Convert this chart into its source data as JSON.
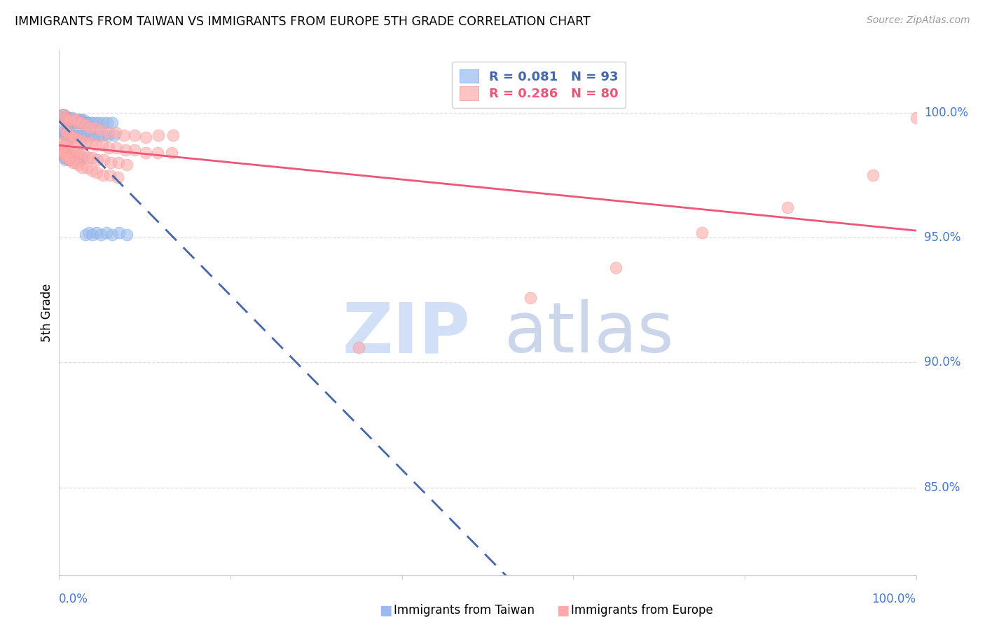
{
  "title": "IMMIGRANTS FROM TAIWAN VS IMMIGRANTS FROM EUROPE 5TH GRADE CORRELATION CHART",
  "source": "Source: ZipAtlas.com",
  "ylabel": "5th Grade",
  "ytick_values": [
    1.0,
    0.95,
    0.9,
    0.85
  ],
  "ytick_labels": [
    "100.0%",
    "95.0%",
    "90.0%",
    "85.0%"
  ],
  "xrange": [
    0.0,
    1.0
  ],
  "yrange": [
    0.815,
    1.025
  ],
  "color_taiwan_fill": "#99BBEE",
  "color_taiwan_edge": "#88AADD",
  "color_europe_fill": "#FFAAAA",
  "color_europe_edge": "#EE9999",
  "color_trendline_taiwan": "#4466AA",
  "color_trendline_europe": "#EE5577",
  "color_axis_labels": "#4477CC",
  "color_grid": "#DDDDDD",
  "taiwan_x": [
    0.004,
    0.005,
    0.005,
    0.006,
    0.006,
    0.007,
    0.007,
    0.008,
    0.008,
    0.009,
    0.009,
    0.01,
    0.01,
    0.011,
    0.011,
    0.012,
    0.012,
    0.013,
    0.014,
    0.015,
    0.015,
    0.016,
    0.017,
    0.018,
    0.019,
    0.02,
    0.021,
    0.022,
    0.023,
    0.024,
    0.025,
    0.026,
    0.027,
    0.028,
    0.029,
    0.031,
    0.033,
    0.035,
    0.038,
    0.042,
    0.046,
    0.051,
    0.056,
    0.062,
    0.004,
    0.005,
    0.006,
    0.007,
    0.008,
    0.009,
    0.01,
    0.011,
    0.012,
    0.013,
    0.015,
    0.017,
    0.019,
    0.021,
    0.024,
    0.027,
    0.03,
    0.033,
    0.037,
    0.041,
    0.046,
    0.051,
    0.057,
    0.064,
    0.003,
    0.004,
    0.005,
    0.006,
    0.007,
    0.008,
    0.009,
    0.01,
    0.012,
    0.013,
    0.015,
    0.017,
    0.019,
    0.021,
    0.024,
    0.027,
    0.031,
    0.035,
    0.039,
    0.044,
    0.049,
    0.055,
    0.062,
    0.07,
    0.079
  ],
  "taiwan_y": [
    0.999,
    0.998,
    0.999,
    0.998,
    0.999,
    0.997,
    0.998,
    0.997,
    0.998,
    0.997,
    0.998,
    0.997,
    0.998,
    0.997,
    0.998,
    0.996,
    0.997,
    0.997,
    0.997,
    0.997,
    0.998,
    0.996,
    0.997,
    0.996,
    0.997,
    0.997,
    0.996,
    0.997,
    0.996,
    0.997,
    0.996,
    0.997,
    0.996,
    0.997,
    0.996,
    0.996,
    0.996,
    0.996,
    0.996,
    0.996,
    0.996,
    0.996,
    0.996,
    0.996,
    0.993,
    0.992,
    0.991,
    0.992,
    0.991,
    0.992,
    0.991,
    0.992,
    0.991,
    0.991,
    0.991,
    0.991,
    0.991,
    0.991,
    0.991,
    0.991,
    0.991,
    0.991,
    0.991,
    0.991,
    0.991,
    0.991,
    0.991,
    0.991,
    0.985,
    0.984,
    0.983,
    0.982,
    0.981,
    0.982,
    0.983,
    0.982,
    0.981,
    0.982,
    0.981,
    0.982,
    0.981,
    0.982,
    0.981,
    0.982,
    0.951,
    0.952,
    0.951,
    0.952,
    0.951,
    0.952,
    0.951,
    0.952,
    0.951
  ],
  "europe_x": [
    0.005,
    0.007,
    0.009,
    0.011,
    0.013,
    0.016,
    0.019,
    0.022,
    0.026,
    0.031,
    0.036,
    0.042,
    0.049,
    0.057,
    0.066,
    0.076,
    0.088,
    0.101,
    0.116,
    0.133,
    0.007,
    0.009,
    0.012,
    0.015,
    0.018,
    0.022,
    0.026,
    0.031,
    0.037,
    0.043,
    0.05,
    0.058,
    0.067,
    0.077,
    0.088,
    0.101,
    0.115,
    0.131,
    0.004,
    0.006,
    0.008,
    0.01,
    0.012,
    0.015,
    0.018,
    0.021,
    0.025,
    0.029,
    0.034,
    0.039,
    0.045,
    0.052,
    0.06,
    0.069,
    0.079,
    0.003,
    0.004,
    0.006,
    0.007,
    0.009,
    0.011,
    0.013,
    0.016,
    0.019,
    0.023,
    0.027,
    0.032,
    0.038,
    0.044,
    0.051,
    0.059,
    0.068,
    0.35,
    0.55,
    0.65,
    0.75,
    0.85,
    0.95,
    1.0
  ],
  "europe_y": [
    0.999,
    0.998,
    0.997,
    0.997,
    0.997,
    0.997,
    0.997,
    0.996,
    0.996,
    0.995,
    0.994,
    0.994,
    0.993,
    0.992,
    0.992,
    0.991,
    0.991,
    0.99,
    0.991,
    0.991,
    0.993,
    0.992,
    0.991,
    0.99,
    0.99,
    0.989,
    0.989,
    0.988,
    0.988,
    0.987,
    0.987,
    0.986,
    0.986,
    0.985,
    0.985,
    0.984,
    0.984,
    0.984,
    0.988,
    0.987,
    0.987,
    0.986,
    0.985,
    0.985,
    0.984,
    0.984,
    0.983,
    0.983,
    0.982,
    0.982,
    0.981,
    0.981,
    0.98,
    0.98,
    0.979,
    0.985,
    0.984,
    0.984,
    0.983,
    0.982,
    0.982,
    0.981,
    0.98,
    0.98,
    0.979,
    0.978,
    0.978,
    0.977,
    0.976,
    0.975,
    0.975,
    0.974,
    0.906,
    0.926,
    0.938,
    0.952,
    0.962,
    0.975,
    0.998
  ]
}
